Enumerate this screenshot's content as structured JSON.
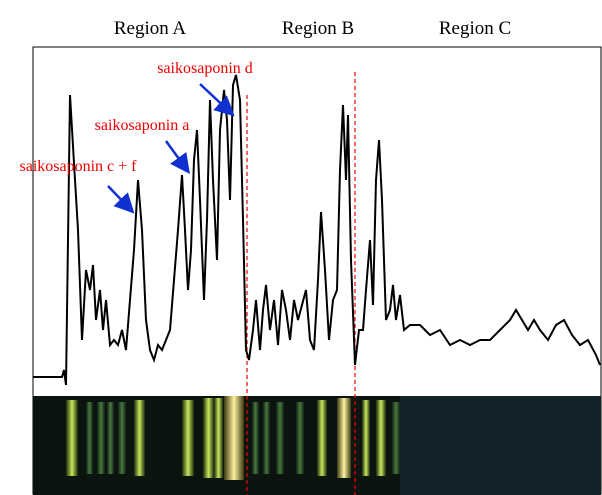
{
  "regions": [
    "Region A",
    "Region B",
    "Region C"
  ],
  "annotations": [
    "saikosaponin d",
    "saikosaponin a",
    "saikosaponin c + f"
  ]
}
